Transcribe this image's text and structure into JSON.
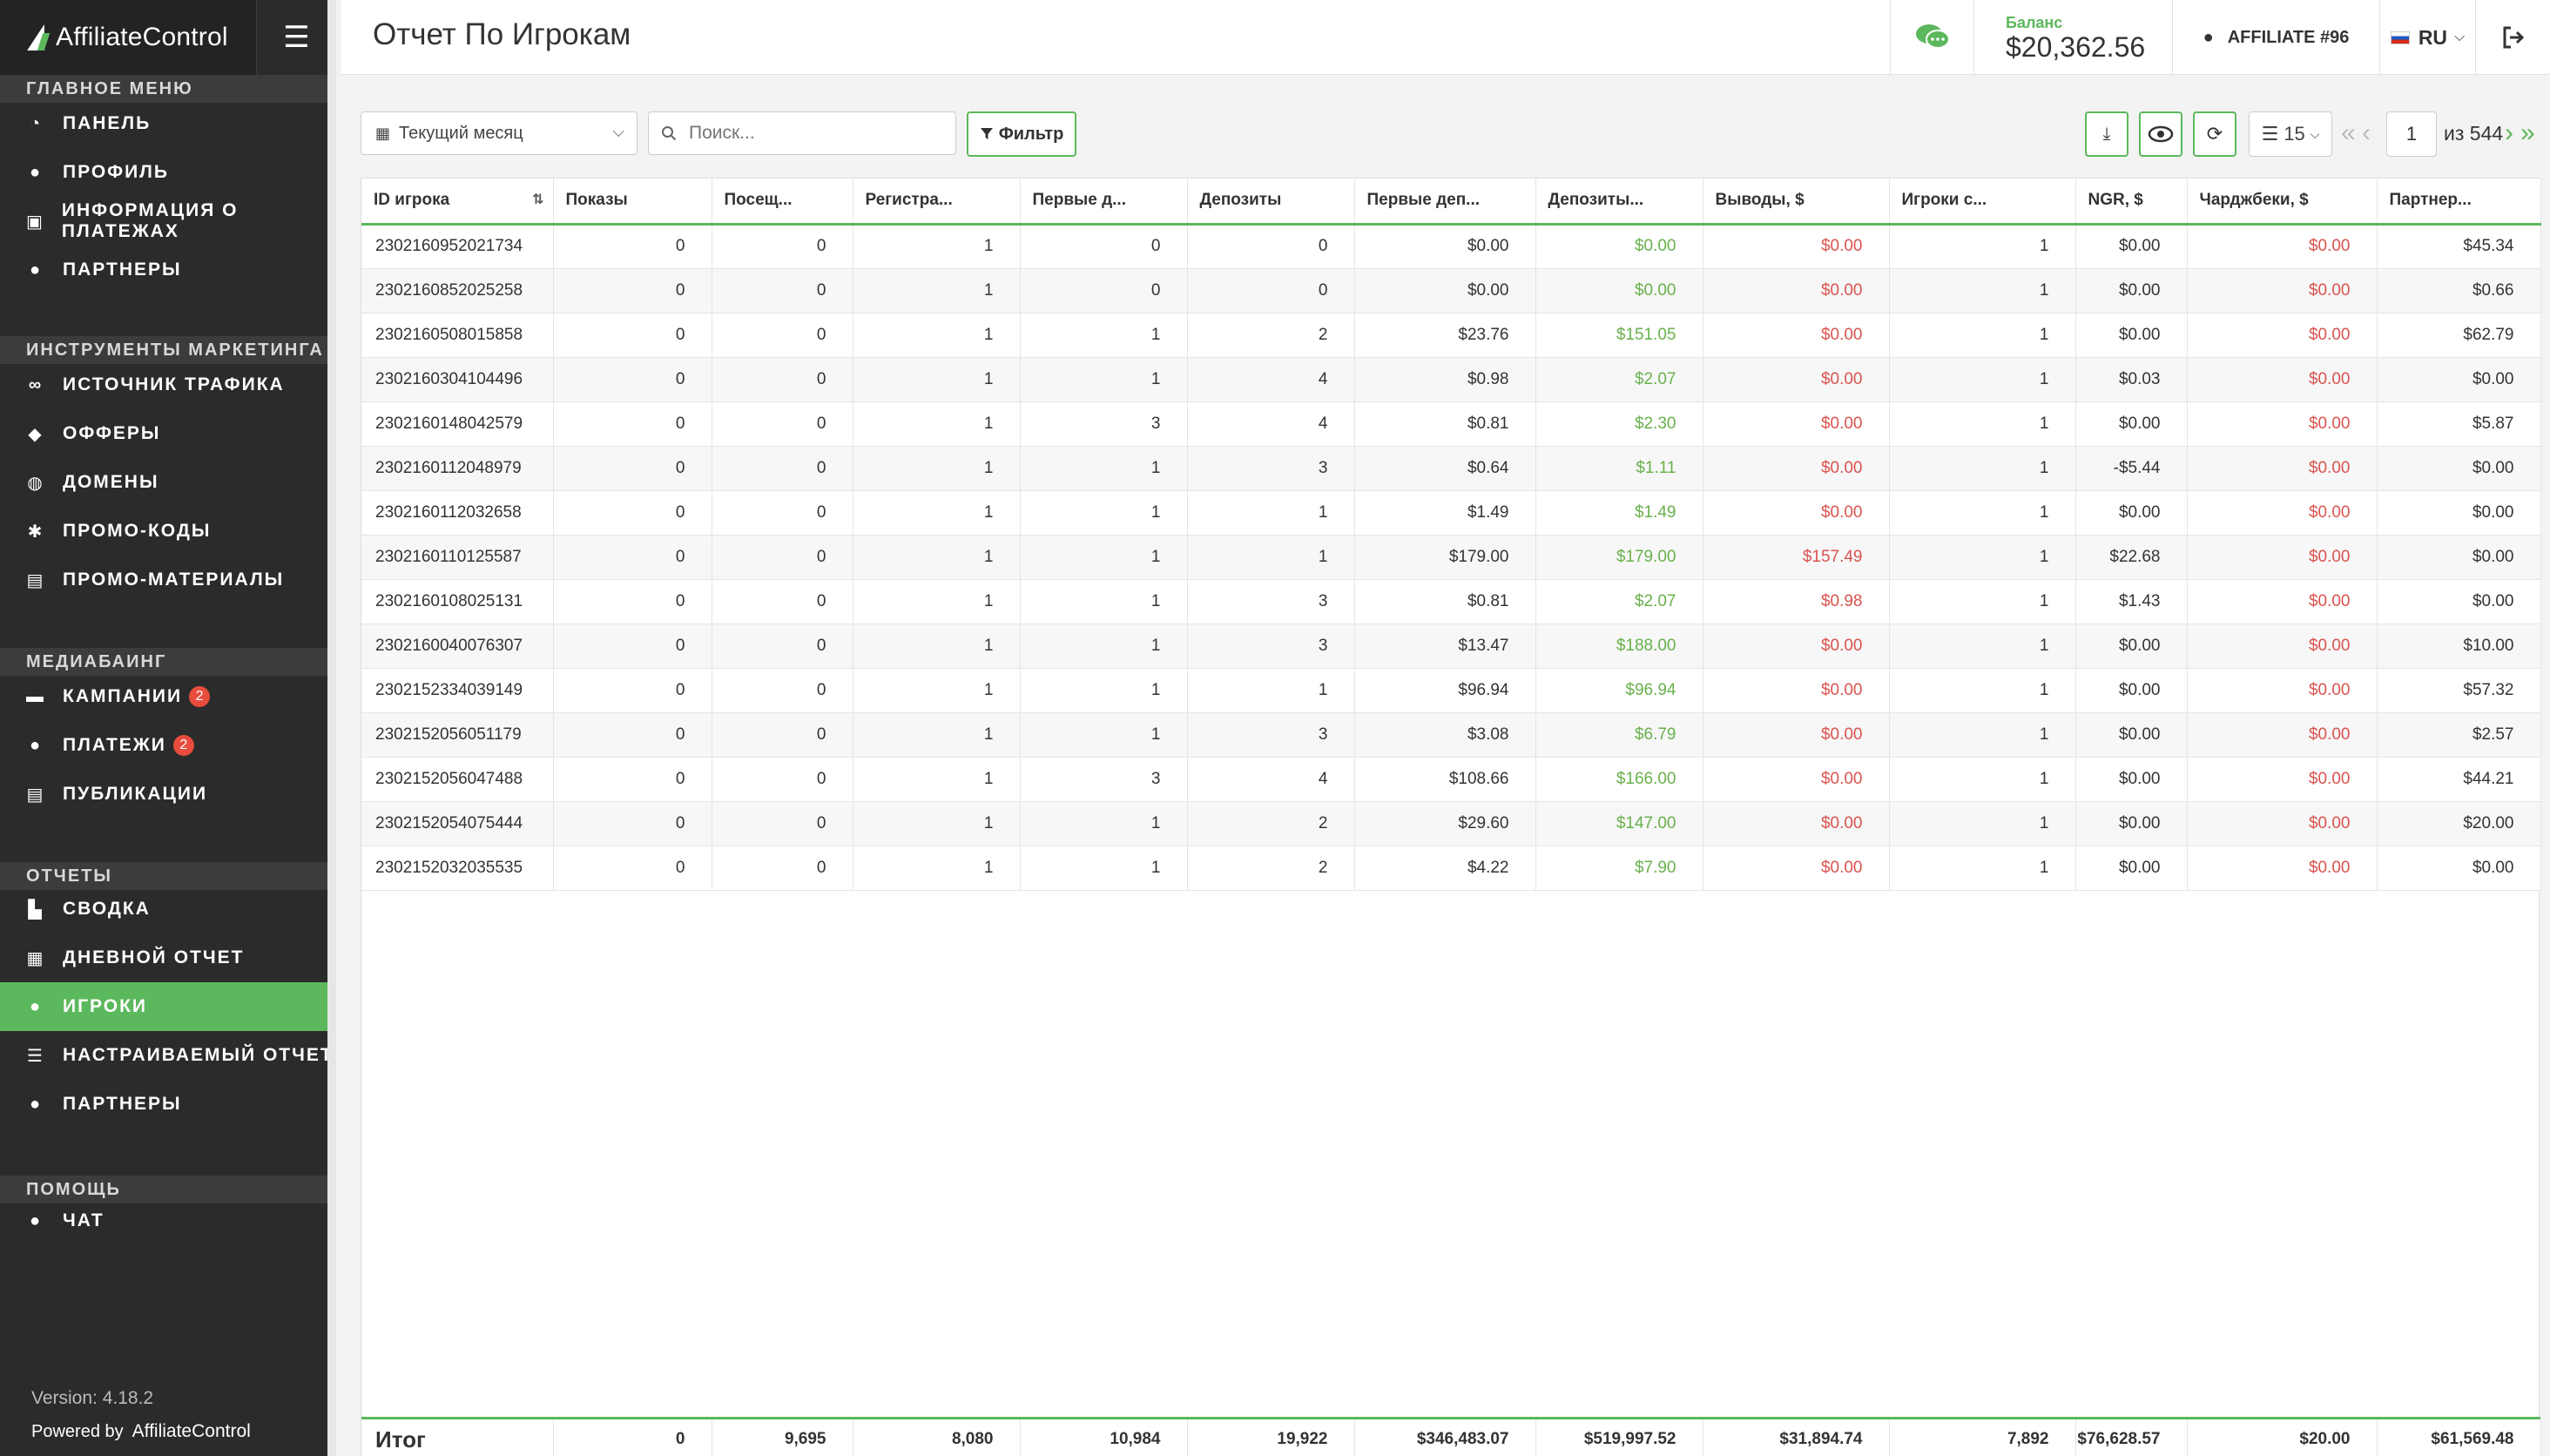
{
  "brand": {
    "part1": "Affiliate",
    "part2": "Control"
  },
  "header": {
    "title": "Отчет По Игрокам",
    "balance_label": "Баланс",
    "balance_value": "$20,362.56",
    "affiliate": "AFFILIATE #96",
    "language": "RU"
  },
  "sidebar": {
    "sections": [
      {
        "label": "ГЛАВНОЕ МЕНЮ",
        "items": [
          {
            "label": "ПАНЕЛЬ",
            "icon": "dashboard-icon",
            "glyph": "◔"
          },
          {
            "label": "ПРОФИЛЬ",
            "icon": "user-icon",
            "glyph": "●"
          },
          {
            "label": "ИНФОРМАЦИЯ О ПЛАТЕЖАХ",
            "icon": "money-icon",
            "glyph": "▣"
          },
          {
            "label": "ПАРТНЕРЫ",
            "icon": "users-icon",
            "glyph": "●"
          }
        ]
      },
      {
        "label": "ИНСТРУМЕНТЫ МАРКЕТИНГА",
        "items": [
          {
            "label": "ИСТОЧНИК ТРАФИКА",
            "icon": "link-icon",
            "glyph": "∞"
          },
          {
            "label": "ОФФЕРЫ",
            "icon": "tags-icon",
            "glyph": "◆"
          },
          {
            "label": "ДОМЕНЫ",
            "icon": "globe-icon",
            "glyph": "◍"
          },
          {
            "label": "ПРОМО-КОДЫ",
            "icon": "percent-icon",
            "glyph": "✱"
          },
          {
            "label": "ПРОМО-МАТЕРИАЛЫ",
            "icon": "images-icon",
            "glyph": "▤"
          }
        ]
      },
      {
        "label": "МЕДИАБАИНГ",
        "items": [
          {
            "label": "КАМПАНИИ",
            "icon": "ad-icon",
            "glyph": "▬",
            "badge": "2"
          },
          {
            "label": "ПЛАТЕЖИ",
            "icon": "dollar-icon",
            "glyph": "●",
            "badge": "2"
          },
          {
            "label": "ПУБЛИКАЦИИ",
            "icon": "publication-icon",
            "glyph": "▤"
          }
        ]
      },
      {
        "label": "ОТЧЕТЫ",
        "items": [
          {
            "label": "СВОДКА",
            "icon": "chart-icon",
            "glyph": "▙"
          },
          {
            "label": "ДНЕВНОЙ ОТЧЕТ",
            "icon": "calendar-icon",
            "glyph": "▦"
          },
          {
            "label": "ИГРОКИ",
            "icon": "player-icon",
            "glyph": "●",
            "active": true
          },
          {
            "label": "НАСТРАИВАЕМЫЙ ОТЧЕТ",
            "icon": "sliders-icon",
            "glyph": "☰"
          },
          {
            "label": "ПАРТНЕРЫ",
            "icon": "users-icon",
            "glyph": "●"
          }
        ]
      },
      {
        "label": "ПОМОЩЬ",
        "items": [
          {
            "label": "ЧАТ",
            "icon": "comments-icon",
            "glyph": "●"
          }
        ]
      }
    ],
    "version": "Version: 4.18.2",
    "powered_by": "Powered by"
  },
  "toolbar": {
    "period": "Текущий месяц",
    "search_placeholder": "Поиск...",
    "filter_label": "Фильтр",
    "per_page": "15",
    "current_page": "1",
    "page_of": "из 544"
  },
  "table": {
    "columns": [
      "ID игрока",
      "Показы",
      "Посещ...",
      "Регистра...",
      "Первые д...",
      "Депозиты",
      "Первые деп...",
      "Депозиты...",
      "Выводы, $",
      "Игроки с...",
      "NGR, $",
      "Чарджбеки, $",
      "Партнер..."
    ],
    "rows": [
      [
        "2302160952021734",
        "0",
        "0",
        "1",
        "0",
        "0",
        "$0.00",
        "$0.00",
        "$0.00",
        "1",
        "$0.00",
        "$0.00",
        "$45.34"
      ],
      [
        "2302160852025258",
        "0",
        "0",
        "1",
        "0",
        "0",
        "$0.00",
        "$0.00",
        "$0.00",
        "1",
        "$0.00",
        "$0.00",
        "$0.66"
      ],
      [
        "2302160508015858",
        "0",
        "0",
        "1",
        "1",
        "2",
        "$23.76",
        "$151.05",
        "$0.00",
        "1",
        "$0.00",
        "$0.00",
        "$62.79"
      ],
      [
        "2302160304104496",
        "0",
        "0",
        "1",
        "1",
        "4",
        "$0.98",
        "$2.07",
        "$0.00",
        "1",
        "$0.03",
        "$0.00",
        "$0.00"
      ],
      [
        "2302160148042579",
        "0",
        "0",
        "1",
        "3",
        "4",
        "$0.81",
        "$2.30",
        "$0.00",
        "1",
        "$0.00",
        "$0.00",
        "$5.87"
      ],
      [
        "2302160112048979",
        "0",
        "0",
        "1",
        "1",
        "3",
        "$0.64",
        "$1.11",
        "$0.00",
        "1",
        "-$5.44",
        "$0.00",
        "$0.00"
      ],
      [
        "2302160112032658",
        "0",
        "0",
        "1",
        "1",
        "1",
        "$1.49",
        "$1.49",
        "$0.00",
        "1",
        "$0.00",
        "$0.00",
        "$0.00"
      ],
      [
        "2302160110125587",
        "0",
        "0",
        "1",
        "1",
        "1",
        "$179.00",
        "$179.00",
        "$157.49",
        "1",
        "$22.68",
        "$0.00",
        "$0.00"
      ],
      [
        "2302160108025131",
        "0",
        "0",
        "1",
        "1",
        "3",
        "$0.81",
        "$2.07",
        "$0.98",
        "1",
        "$1.43",
        "$0.00",
        "$0.00"
      ],
      [
        "2302160040076307",
        "0",
        "0",
        "1",
        "1",
        "3",
        "$13.47",
        "$188.00",
        "$0.00",
        "1",
        "$0.00",
        "$0.00",
        "$10.00"
      ],
      [
        "2302152334039149",
        "0",
        "0",
        "1",
        "1",
        "1",
        "$96.94",
        "$96.94",
        "$0.00",
        "1",
        "$0.00",
        "$0.00",
        "$57.32"
      ],
      [
        "2302152056051179",
        "0",
        "0",
        "1",
        "1",
        "3",
        "$3.08",
        "$6.79",
        "$0.00",
        "1",
        "$0.00",
        "$0.00",
        "$2.57"
      ],
      [
        "2302152056047488",
        "0",
        "0",
        "1",
        "3",
        "4",
        "$108.66",
        "$166.00",
        "$0.00",
        "1",
        "$0.00",
        "$0.00",
        "$44.21"
      ],
      [
        "2302152054075444",
        "0",
        "0",
        "1",
        "1",
        "2",
        "$29.60",
        "$147.00",
        "$0.00",
        "1",
        "$0.00",
        "$0.00",
        "$20.00"
      ],
      [
        "2302152032035535",
        "0",
        "0",
        "1",
        "1",
        "2",
        "$4.22",
        "$7.90",
        "$0.00",
        "1",
        "$0.00",
        "$0.00",
        "$0.00"
      ]
    ],
    "totals": [
      "Итог",
      "0",
      "9,695",
      "8,080",
      "10,984",
      "19,922",
      "$346,483.07",
      "$519,997.52",
      "$31,894.74",
      "7,892",
      "$76,628.57",
      "$20.00",
      "$61,569.48"
    ],
    "colors": {
      "green": "#6ab04c",
      "red": "#d9534f",
      "accent": "#5cb85c"
    }
  }
}
